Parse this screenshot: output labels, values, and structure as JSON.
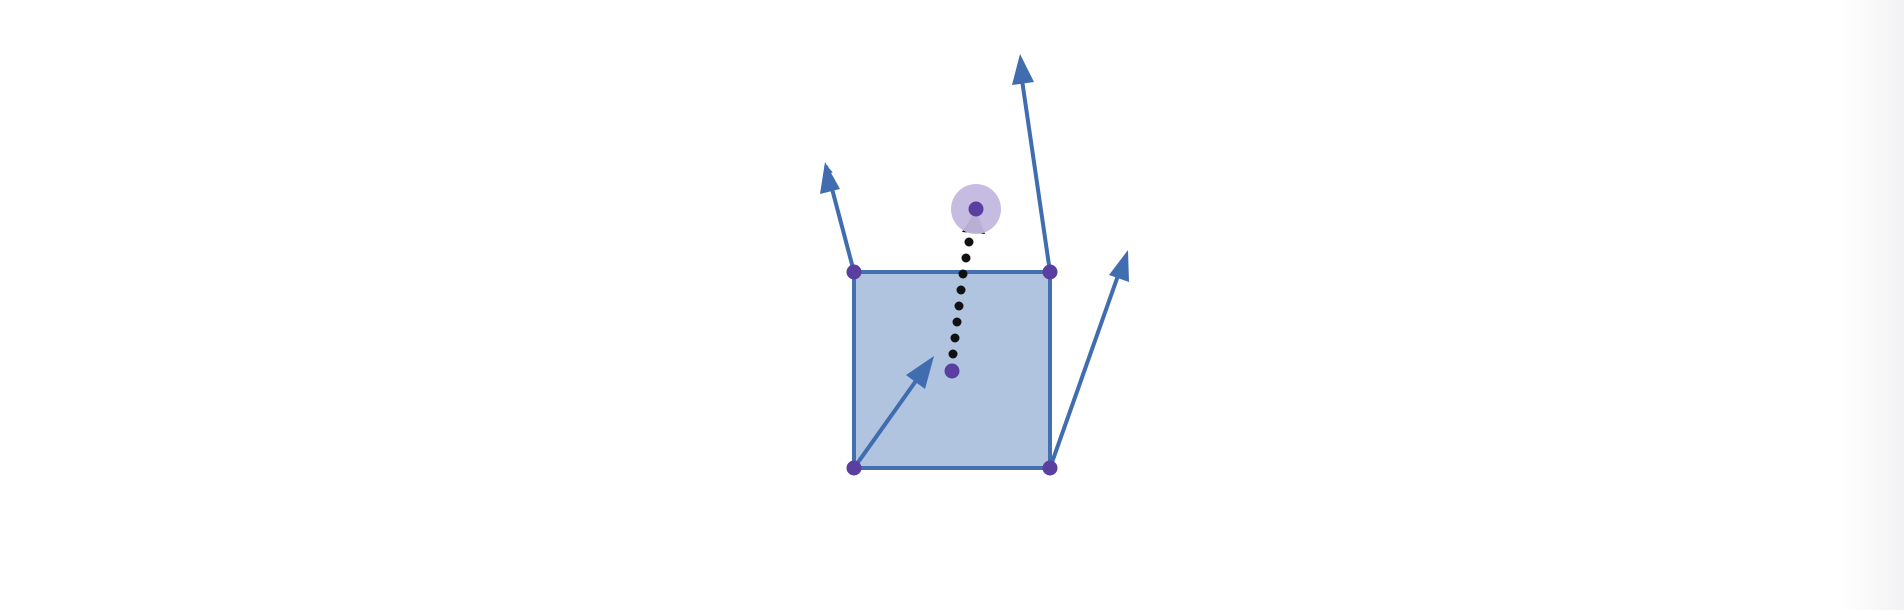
{
  "colors": {
    "background": "#ffffff",
    "square_fill": "#b0c4e0",
    "square_stroke": "#4470b0",
    "vector": "#3f6db0",
    "point": "#5b3fa0",
    "point_halo": "#c3b8e0",
    "dotted_vector": "#111111"
  },
  "diagram": {
    "square": {
      "corners": [
        "bottom-left",
        "bottom-right",
        "top-right",
        "top-left"
      ]
    },
    "vectors": [
      {
        "name": "top-left-vector",
        "from": "top-left"
      },
      {
        "name": "top-right-vector",
        "from": "top-right"
      },
      {
        "name": "bottom-right-vector",
        "from": "bottom-right"
      },
      {
        "name": "bottom-left-vector",
        "from": "bottom-left"
      }
    ],
    "points": {
      "center": "center-point",
      "target": "target-point"
    },
    "target_highlighted": true
  }
}
